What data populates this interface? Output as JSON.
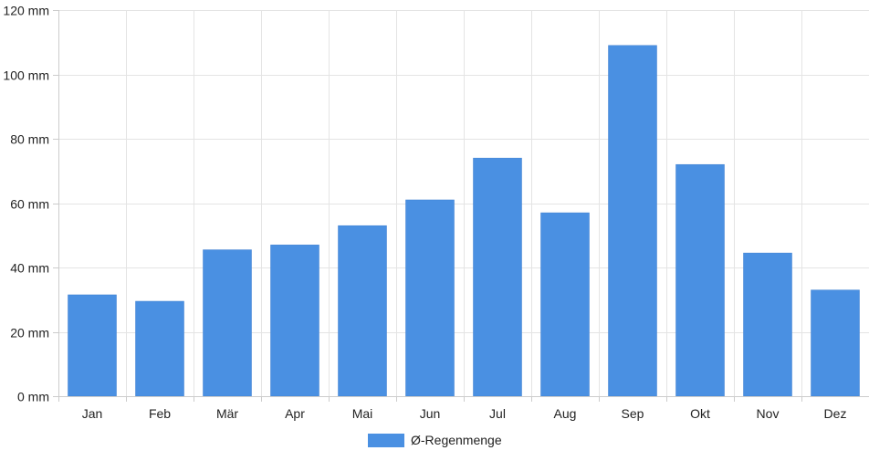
{
  "chart_data": {
    "type": "bar",
    "categories": [
      "Jan",
      "Feb",
      "Mär",
      "Apr",
      "Mai",
      "Jun",
      "Jul",
      "Aug",
      "Sep",
      "Okt",
      "Nov",
      "Dez"
    ],
    "series": [
      {
        "name": "Ø-Regenmenge",
        "values": [
          31.5,
          29.5,
          45.5,
          47,
          53,
          61,
          74,
          57,
          109,
          72,
          44.5,
          33
        ],
        "color": "#4a90e2"
      }
    ],
    "y_ticks": [
      "0 mm",
      "20 mm",
      "40 mm",
      "60 mm",
      "80 mm",
      "100 mm",
      "120 mm"
    ],
    "ylim": [
      0,
      120
    ],
    "grid": true,
    "legend_position": "bottom-center",
    "title": "",
    "xlabel": "",
    "ylabel": ""
  }
}
